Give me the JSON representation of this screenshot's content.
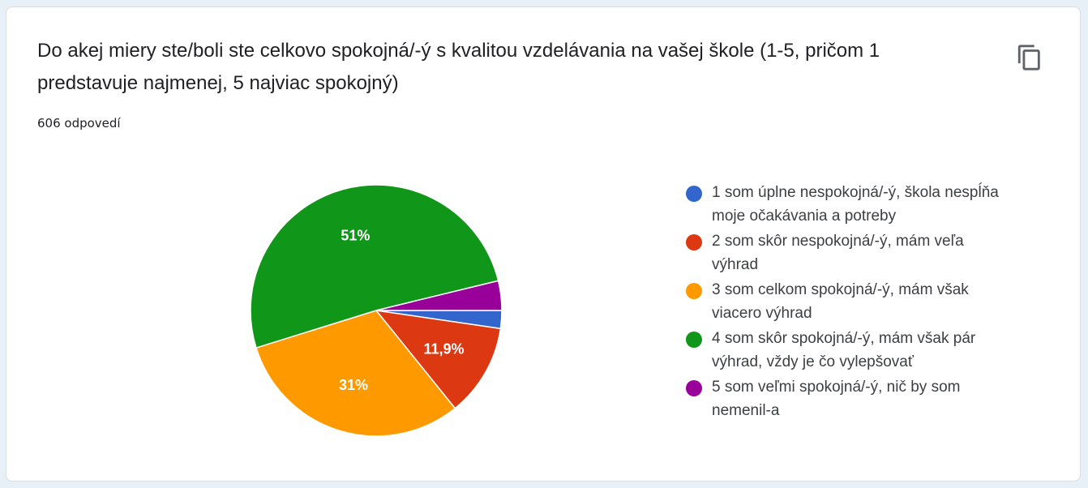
{
  "question": {
    "title": "Do akej miery ste/boli ste celkovo spokojná/-ý s kvalitou vzdelávania na vašej škole (1-5, pričom 1 predstavuje najmenej, 5 najviac spokojný)",
    "responses": "606 odpovedí",
    "copy_icon": "copy-icon"
  },
  "chart_data": {
    "type": "pie",
    "categories": [
      "1 som úplne nespokojná/-ý, škola nespĺňa moje očakávania a potreby",
      "2 som skôr nespokojná/-ý, mám veľa výhrad",
      "3 som celkom spokojná/-ý, mám však viacero výhrad",
      "4 som skôr spokojná/-ý, mám však pár výhrad, vždy je čo vylepšovať",
      "5 som veľmi spokojná/-ý, nič by som nemenil-a"
    ],
    "values": [
      2.3,
      11.9,
      31,
      51,
      3.8
    ],
    "data_labels": [
      "",
      "11,9%",
      "31%",
      "51%",
      ""
    ],
    "colors": [
      "#3366cc",
      "#dc3912",
      "#ff9900",
      "#109618",
      "#990099"
    ],
    "legend_position": "right"
  }
}
